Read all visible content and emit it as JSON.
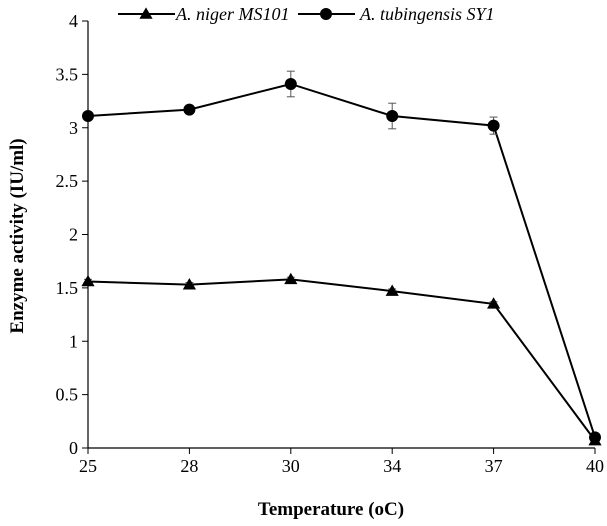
{
  "chart_data": {
    "type": "line",
    "categories": [
      "25",
      "28",
      "30",
      "34",
      "37",
      "40"
    ],
    "series": [
      {
        "name": "A. niger MS101",
        "marker": "triangle",
        "values": [
          1.56,
          1.53,
          1.58,
          1.47,
          1.35,
          0.07
        ],
        "errors": [
          0.02,
          0.02,
          0.02,
          0.02,
          0.02,
          0.01
        ]
      },
      {
        "name": "A. tubingensis SY1",
        "marker": "circle",
        "values": [
          3.11,
          3.17,
          3.41,
          3.11,
          3.02,
          0.1
        ],
        "errors": [
          0.03,
          0.03,
          0.12,
          0.12,
          0.08,
          0.01
        ]
      }
    ],
    "title": "",
    "xlabel": "Temperature (oC)",
    "ylabel": "Enzyme activity (IU/ml)",
    "ylim": [
      0,
      4
    ],
    "yticks": [
      "0",
      "0.5",
      "1",
      "1.5",
      "2",
      "2.5",
      "3",
      "3.5",
      "4"
    ],
    "grid": false,
    "legend_position": "top",
    "color": "#000000"
  }
}
